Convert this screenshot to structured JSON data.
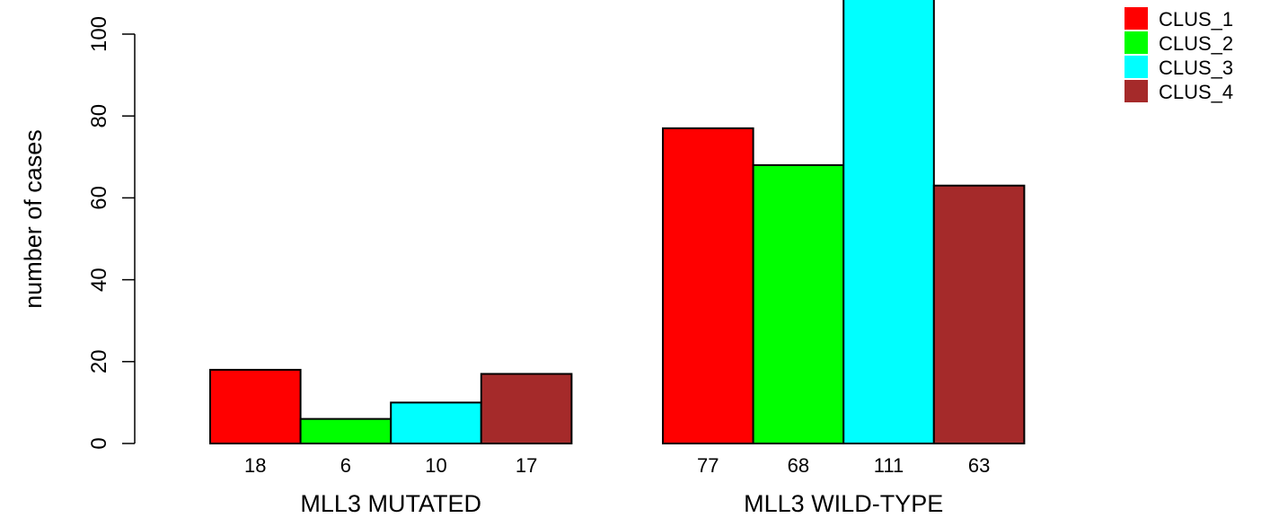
{
  "chart_data": {
    "type": "bar",
    "ylabel": "number of cases",
    "ylim": [
      0,
      108
    ],
    "yticks": [
      0,
      20,
      40,
      60,
      80,
      100
    ],
    "categories": [
      "MLL3 MUTATED",
      "MLL3 WILD-TYPE"
    ],
    "series": [
      {
        "name": "CLUS_1",
        "color": "#ff0000",
        "values": [
          18,
          77
        ]
      },
      {
        "name": "CLUS_2",
        "color": "#00ff00",
        "values": [
          6,
          68
        ]
      },
      {
        "name": "CLUS_3",
        "color": "#00ffff",
        "values": [
          10,
          111
        ]
      },
      {
        "name": "CLUS_4",
        "color": "#a52a2a",
        "values": [
          17,
          63
        ]
      }
    ],
    "value_labels": [
      [
        "18",
        "6",
        "10",
        "17"
      ],
      [
        "77",
        "68",
        "111",
        "63"
      ]
    ],
    "legend_position": "top-right",
    "grid": false
  }
}
